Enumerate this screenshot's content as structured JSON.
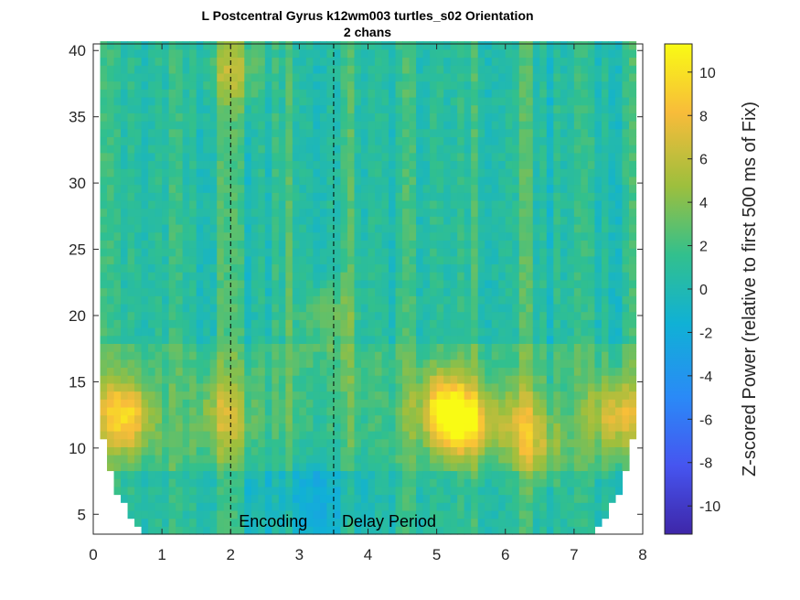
{
  "chart_data": {
    "type": "heatmap",
    "title": "L Postcentral Gyrus k12wm003 turtles_s02 Orientation",
    "subtitle": "2 chans",
    "xlabel": "",
    "ylabel": "",
    "xlim": [
      0,
      8
    ],
    "ylim": [
      3.5,
      40.5
    ],
    "x_ticks": [
      "0",
      "1",
      "2",
      "3",
      "4",
      "5",
      "6",
      "7",
      "8"
    ],
    "y_ticks": [
      "5",
      "10",
      "15",
      "20",
      "25",
      "30",
      "35",
      "40"
    ],
    "colorbar": {
      "label": "Z-scored Power (relative to first 500 ms of Fix)",
      "range": [
        -11.3,
        11.3
      ],
      "ticks": [
        "10",
        "8",
        "6",
        "4",
        "2",
        "0",
        "-2",
        "-4",
        "-6",
        "-8",
        "-10"
      ],
      "colormap": "parula"
    },
    "markers": [
      {
        "x": 2.0,
        "label": "Encoding"
      },
      {
        "x": 3.5,
        "label": "Delay Period"
      }
    ],
    "hotspots": [
      {
        "x": 0.45,
        "y": 12.5,
        "value": 9
      },
      {
        "x": 1.9,
        "y": 12.5,
        "value": 5
      },
      {
        "x": 3.4,
        "y": 20.0,
        "value": 4
      },
      {
        "x": 5.1,
        "y": 13.0,
        "value": 8
      },
      {
        "x": 5.4,
        "y": 12.0,
        "value": 9
      },
      {
        "x": 6.2,
        "y": 12.0,
        "value": 5
      },
      {
        "x": 7.6,
        "y": 12.5,
        "value": 7
      },
      {
        "x": 2.05,
        "y": 38.5,
        "value": 5
      },
      {
        "x": 6.5,
        "y": 10.0,
        "value": 4
      }
    ]
  }
}
